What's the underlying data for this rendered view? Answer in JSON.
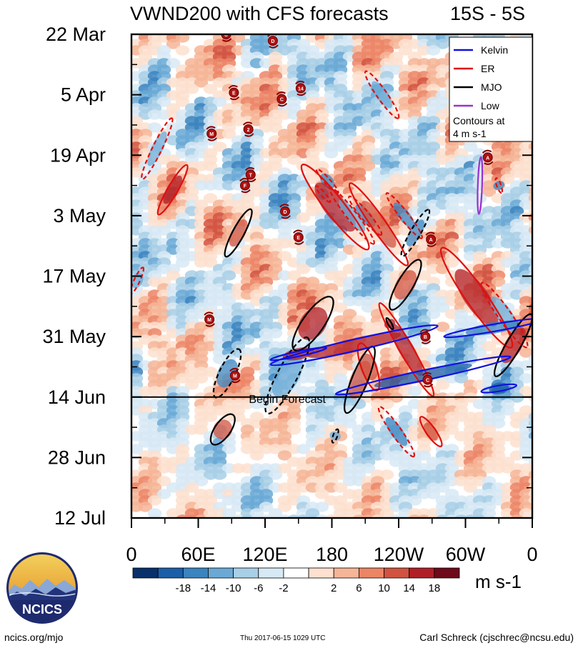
{
  "chart_data": {
    "type": "heatmap",
    "title": "VWND200 with CFS forecasts",
    "region": "15S - 5S",
    "x_ticks": [
      "0",
      "60E",
      "120E",
      "180",
      "120W",
      "60W",
      "0"
    ],
    "y_ticks": [
      "22 Mar",
      "5 Apr",
      "19 Apr",
      "3 May",
      "17 May",
      "31 May",
      "14 Jun",
      "28 Jun",
      "12 Jul"
    ],
    "xlim": [
      0,
      360
    ],
    "y_range": [
      "22 Mar",
      "12 Jul"
    ],
    "forecast_start": "14 Jun",
    "forecast_label": "Begin Forecast",
    "legend": {
      "placement": "top-right",
      "entries": [
        {
          "name": "Kelvin",
          "color": "#1010e0"
        },
        {
          "name": "ER",
          "color": "#e01010"
        },
        {
          "name": "MJO",
          "color": "#000000"
        },
        {
          "name": "Low",
          "color": "#9933cc"
        }
      ],
      "note_line1": "Contours at",
      "note_line2": "4 m s-1"
    },
    "colorbar": {
      "units": "m s-1",
      "labels": [
        "-18",
        "-14",
        "-10",
        "-6",
        "-2",
        "2",
        "6",
        "10",
        "14",
        "18"
      ],
      "colors": [
        "#08306b",
        "#1c5ea8",
        "#3b84c0",
        "#6aa9d6",
        "#a8cfe6",
        "#d7e9f4",
        "#ffffff",
        "#fde0cf",
        "#f6b596",
        "#ec8566",
        "#d2533f",
        "#b01f27",
        "#6e0a1a"
      ]
    },
    "storms": [
      {
        "label": "C",
        "lon": 85,
        "day": 0
      },
      {
        "label": "D",
        "lon": 127,
        "day": 1.5
      },
      {
        "label": "E",
        "lon": 92,
        "day": 13.5
      },
      {
        "label": "14",
        "lon": 152,
        "day": 12.5
      },
      {
        "label": "C",
        "lon": 135,
        "day": 15
      },
      {
        "label": "M",
        "lon": 72,
        "day": 23
      },
      {
        "label": "2",
        "lon": 105,
        "day": 22
      },
      {
        "label": "A",
        "lon": 320,
        "day": 28.5
      },
      {
        "label": "T",
        "lon": 107,
        "day": 32.5
      },
      {
        "label": "F",
        "lon": 102,
        "day": 35
      },
      {
        "label": "D",
        "lon": 138,
        "day": 41
      },
      {
        "label": "E",
        "lon": 150,
        "day": 47
      },
      {
        "label": "A",
        "lon": 269,
        "day": 47.5
      },
      {
        "label": "M",
        "lon": 70,
        "day": 66
      },
      {
        "label": "B",
        "lon": 264,
        "day": 70
      },
      {
        "label": "M",
        "lon": 93,
        "day": 79
      },
      {
        "label": "C",
        "lon": 266,
        "day": 80
      }
    ],
    "features": [
      {
        "wave": "ER",
        "style": "dashed",
        "lon": 23,
        "day": 26.5,
        "len": 95,
        "w": 13,
        "angle": 64
      },
      {
        "wave": "ER",
        "style": "solid",
        "lon": 37,
        "day": 36,
        "len": 80,
        "w": 14,
        "angle": 60
      },
      {
        "wave": "ER",
        "style": "dashed",
        "lon": 5,
        "day": 57,
        "len": 40,
        "w": 8,
        "angle": 65
      },
      {
        "wave": "ER",
        "style": "dashed",
        "lon": 176,
        "day": 34,
        "len": 45,
        "w": 8,
        "angle": -48
      },
      {
        "wave": "ER",
        "style": "dashed",
        "lon": 172,
        "day": 37,
        "len": 30,
        "w": 6,
        "angle": -48
      },
      {
        "wave": "ER",
        "style": "solid",
        "lon": 183,
        "day": 40,
        "len": 150,
        "w": 26,
        "angle": -52
      },
      {
        "wave": "ER",
        "style": "dashed",
        "lon": 198,
        "day": 42,
        "len": 100,
        "w": 14,
        "angle": -52
      },
      {
        "wave": "ER",
        "style": "dashed",
        "lon": 210,
        "day": 42,
        "len": 70,
        "w": 12,
        "angle": -50
      },
      {
        "wave": "ER",
        "style": "solid",
        "lon": 222,
        "day": 44,
        "len": 140,
        "w": 20,
        "angle": -55
      },
      {
        "wave": "ER",
        "style": "dashed",
        "lon": 245,
        "day": 42,
        "len": 80,
        "w": 12,
        "angle": -52
      },
      {
        "wave": "ER",
        "style": "dashed",
        "lon": 225,
        "day": 14,
        "len": 80,
        "w": 14,
        "angle": -55
      },
      {
        "wave": "ER",
        "style": "solid",
        "lon": 310,
        "day": 61,
        "len": 170,
        "w": 28,
        "angle": -55
      },
      {
        "wave": "ER",
        "style": "dashed",
        "lon": 335,
        "day": 65,
        "len": 110,
        "w": 18,
        "angle": -55
      },
      {
        "wave": "ER",
        "style": "solid",
        "lon": 247,
        "day": 73,
        "len": 150,
        "w": 18,
        "angle": -60
      },
      {
        "wave": "ER",
        "style": "solid",
        "lon": 213,
        "day": 77,
        "len": 70,
        "w": 20,
        "angle": -70
      },
      {
        "wave": "ER",
        "style": "dashed",
        "lon": 238,
        "day": 92,
        "len": 85,
        "w": 14,
        "angle": -55
      },
      {
        "wave": "ER",
        "style": "solid",
        "lon": 269,
        "day": 92,
        "len": 50,
        "w": 13,
        "angle": -55
      },
      {
        "wave": "ER",
        "style": "dashed",
        "lon": 330,
        "day": 35,
        "len": 22,
        "w": 6,
        "angle": -70
      },
      {
        "wave": "MJO",
        "style": "solid",
        "lon": 96,
        "day": 46,
        "len": 75,
        "w": 16,
        "angle": 62
      },
      {
        "wave": "MJO",
        "style": "dashed",
        "lon": 255,
        "day": 46,
        "len": 75,
        "w": 14,
        "angle": 60
      },
      {
        "wave": "MJO",
        "style": "solid",
        "lon": 246,
        "day": 58,
        "len": 80,
        "w": 22,
        "angle": 60
      },
      {
        "wave": "MJO",
        "style": "solid",
        "lon": 163,
        "day": 67,
        "len": 90,
        "w": 30,
        "angle": 55
      },
      {
        "wave": "MJO",
        "style": "dashed",
        "lon": 140,
        "day": 79,
        "len": 120,
        "w": 28,
        "angle": 62
      },
      {
        "wave": "MJO",
        "style": "dashed",
        "lon": 86,
        "day": 78.5,
        "len": 75,
        "w": 22,
        "angle": 64
      },
      {
        "wave": "MJO",
        "style": "solid",
        "lon": 205,
        "day": 80,
        "len": 100,
        "w": 22,
        "angle": 68
      },
      {
        "wave": "MJO",
        "style": "solid",
        "lon": 343,
        "day": 72,
        "len": 100,
        "w": 20,
        "angle": 60
      },
      {
        "wave": "MJO",
        "style": "solid",
        "lon": 82,
        "day": 91.5,
        "len": 50,
        "w": 22,
        "angle": 55
      },
      {
        "wave": "MJO",
        "style": "solid",
        "lon": 232,
        "day": 67,
        "len": 18,
        "w": 5,
        "angle": -60
      },
      {
        "wave": "MJO",
        "style": "dashed",
        "lon": 183,
        "day": 93,
        "len": 20,
        "w": 6,
        "angle": 70
      },
      {
        "wave": "Kelvin",
        "style": "solid",
        "lon": 200,
        "day": 72,
        "len": 240,
        "w": 16,
        "angle": 13
      },
      {
        "wave": "Kelvin",
        "style": "solid",
        "lon": 262,
        "day": 79,
        "len": 250,
        "w": 14,
        "angle": 12
      },
      {
        "wave": "Kelvin",
        "style": "solid",
        "lon": 325,
        "day": 68,
        "len": 140,
        "w": 10,
        "angle": 10
      },
      {
        "wave": "Kelvin",
        "style": "solid",
        "lon": 150,
        "day": 74,
        "len": 80,
        "w": 7,
        "angle": 12
      },
      {
        "wave": "Kelvin",
        "style": "solid",
        "lon": 330,
        "day": 82,
        "len": 50,
        "w": 8,
        "angle": 10
      },
      {
        "wave": "Low",
        "style": "solid",
        "lon": 313,
        "day": 35,
        "len": 80,
        "w": 6,
        "angle": 88
      }
    ]
  },
  "footer": {
    "left": "ncics.org/mjo",
    "center": "Thu 2017-06-15 1029 UTC",
    "right": "Carl Schreck (cjschrec@ncsu.edu)"
  },
  "logo": {
    "text": "NCICS",
    "colors": {
      "sky_top": "#f4d35e",
      "sky_bottom": "#e8a63a",
      "mountain_light": "#8aa7d6",
      "mountain_dark": "#22337a",
      "ring": "#1e2a6e"
    }
  }
}
